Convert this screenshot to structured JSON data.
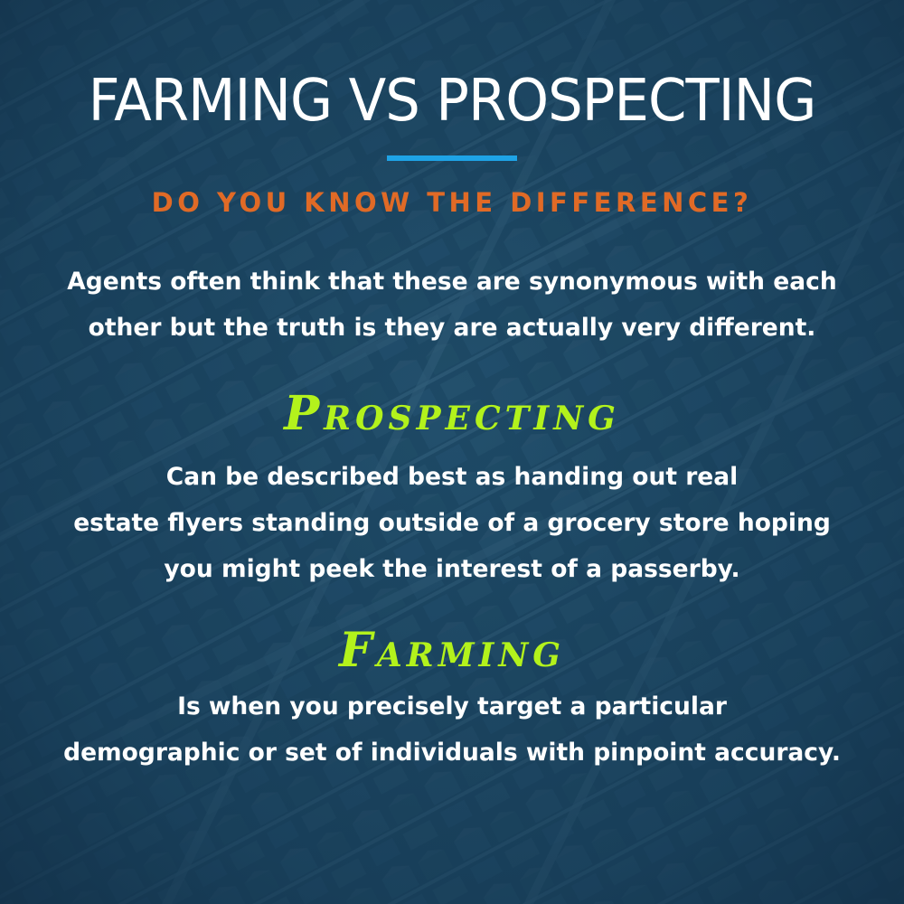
{
  "title": "FARMING VS PROSPECTING",
  "subtitle": "DO YOU KNOW THE DIFFERENCE?",
  "intro": {
    "lines": [
      "Agents often think that these are synonymous with each",
      "other but the truth is they are actually very different."
    ]
  },
  "prospecting": {
    "heading": "Prospecting",
    "lines": [
      "Can be described best as handing out real",
      "estate flyers standing outside of a grocery store hoping",
      "you might peek the interest of a passerby."
    ]
  },
  "farming": {
    "heading": "Farming",
    "lines": [
      "Is when you precisely target a particular",
      "demographic or set of individuals with pinpoint accuracy."
    ]
  },
  "colors": {
    "background": "#1d4a66",
    "title": "#ffffff",
    "rule": "#1ea3e6",
    "subtitle": "#e06a26",
    "heading": "#b3f21c",
    "body": "#ffffff"
  },
  "background_image": "aerial-neighborhood-photo"
}
